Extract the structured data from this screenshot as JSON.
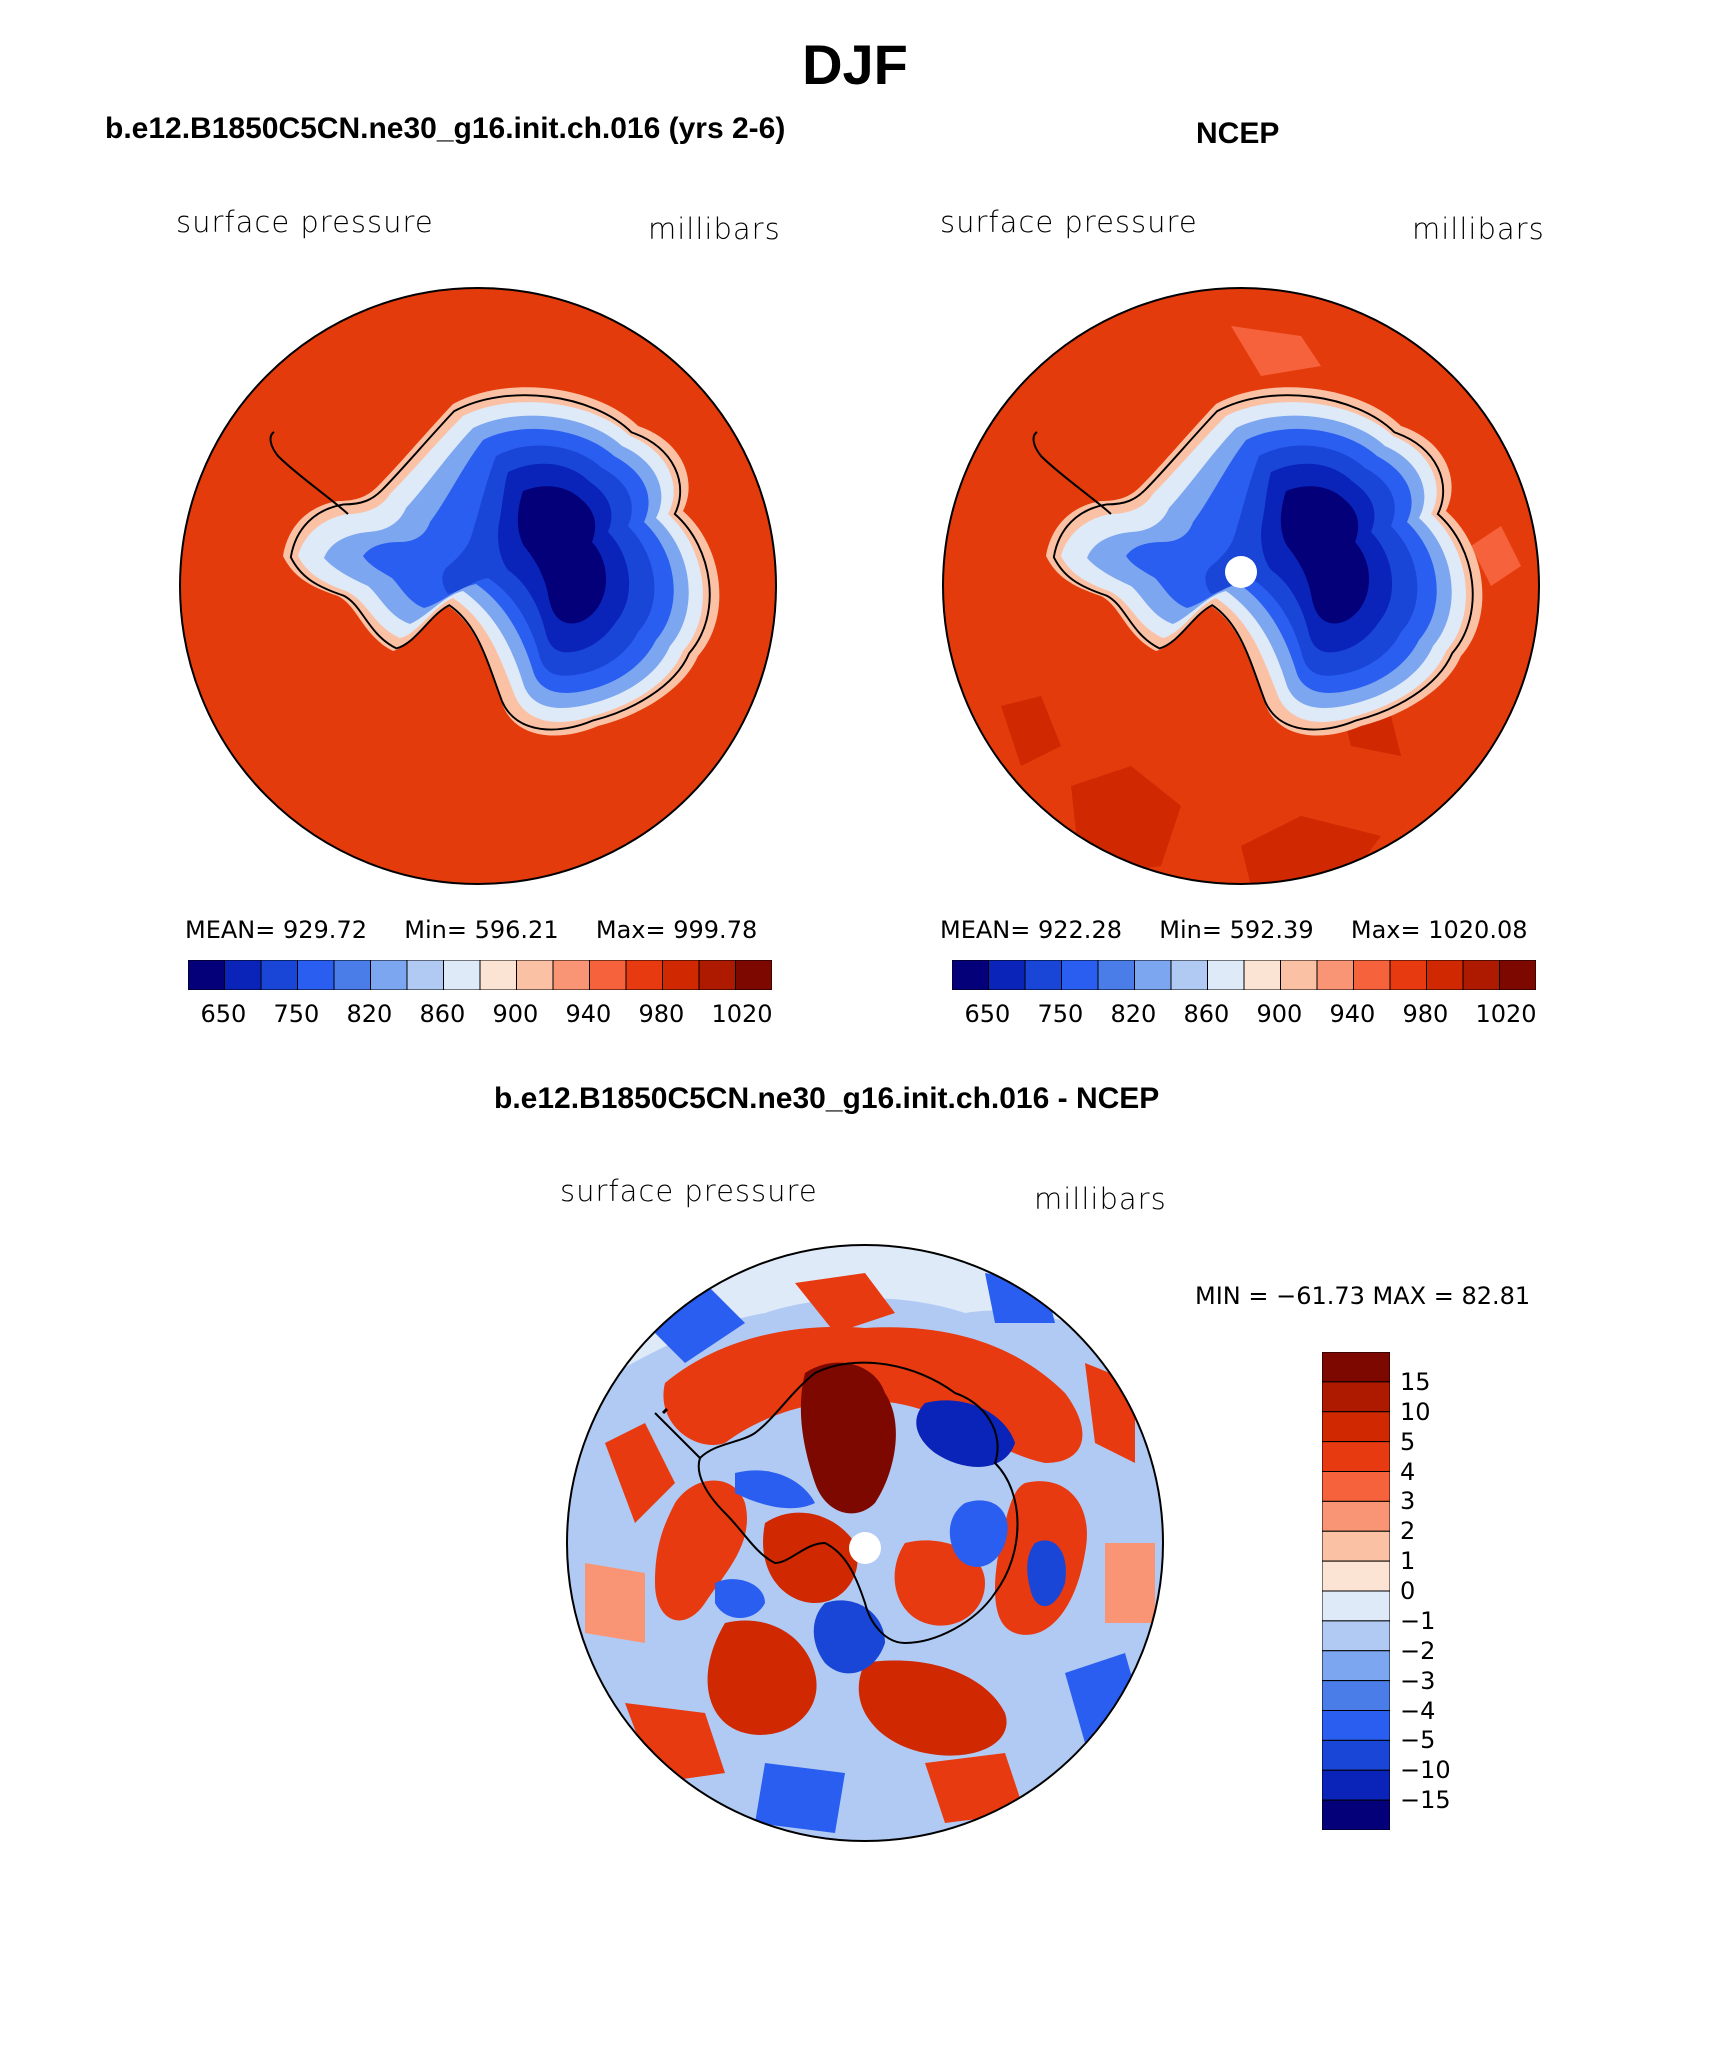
{
  "page_title": "DJF",
  "panels": [
    {
      "title": "b.e12.B1850C5CN.ne30_g16.init.ch.016 (yrs 2-6)",
      "variable": "surface pressure",
      "units": "millibars",
      "stats": {
        "mean_label": "MEAN=",
        "mean": "929.72",
        "min_label": "Min=",
        "min": "596.21",
        "max_label": "Max=",
        "max": "999.78"
      }
    },
    {
      "title": "NCEP",
      "variable": "surface pressure",
      "units": "millibars",
      "stats": {
        "mean_label": "MEAN=",
        "mean": "922.28",
        "min_label": "Min=",
        "min": "592.39",
        "max_label": "Max=",
        "max": "1020.08"
      }
    },
    {
      "title": "b.e12.B1850C5CN.ne30_g16.init.ch.016 - NCEP",
      "variable": "surface pressure",
      "units": "millibars",
      "minmax": "MIN = −61.73 MAX =  82.81"
    }
  ],
  "colorbar_abs": {
    "colors": [
      "#03007a",
      "#0a23b8",
      "#1946d6",
      "#2a5ef0",
      "#4a7de8",
      "#7da6f0",
      "#b1caf4",
      "#dfeaf9",
      "#fce4d4",
      "#fbc1a4",
      "#f99575",
      "#f6623c",
      "#e73a10",
      "#d02800",
      "#ad1a00",
      "#7d0800"
    ],
    "tick_labels": [
      "650",
      "750",
      "820",
      "860",
      "900",
      "940",
      "980",
      "1020"
    ]
  },
  "colorbar_diff": {
    "colors": [
      "#03007a",
      "#0a23b8",
      "#1946d6",
      "#2a5ef0",
      "#4a7de8",
      "#7da6f0",
      "#b1caf4",
      "#dfeaf9",
      "#fce4d4",
      "#fbc1a4",
      "#f99575",
      "#f6623c",
      "#e73a10",
      "#d02800",
      "#ad1a00",
      "#7d0800"
    ],
    "tick_labels": [
      "15",
      "10",
      "5",
      "4",
      "3",
      "2",
      "1",
      "0",
      "−1",
      "−2",
      "−3",
      "−4",
      "−5",
      "−10",
      "−15"
    ]
  },
  "map_colors": {
    "ocean": "#e33b0b",
    "coast_line": "#000000",
    "pole_hole": "#ffffff"
  }
}
